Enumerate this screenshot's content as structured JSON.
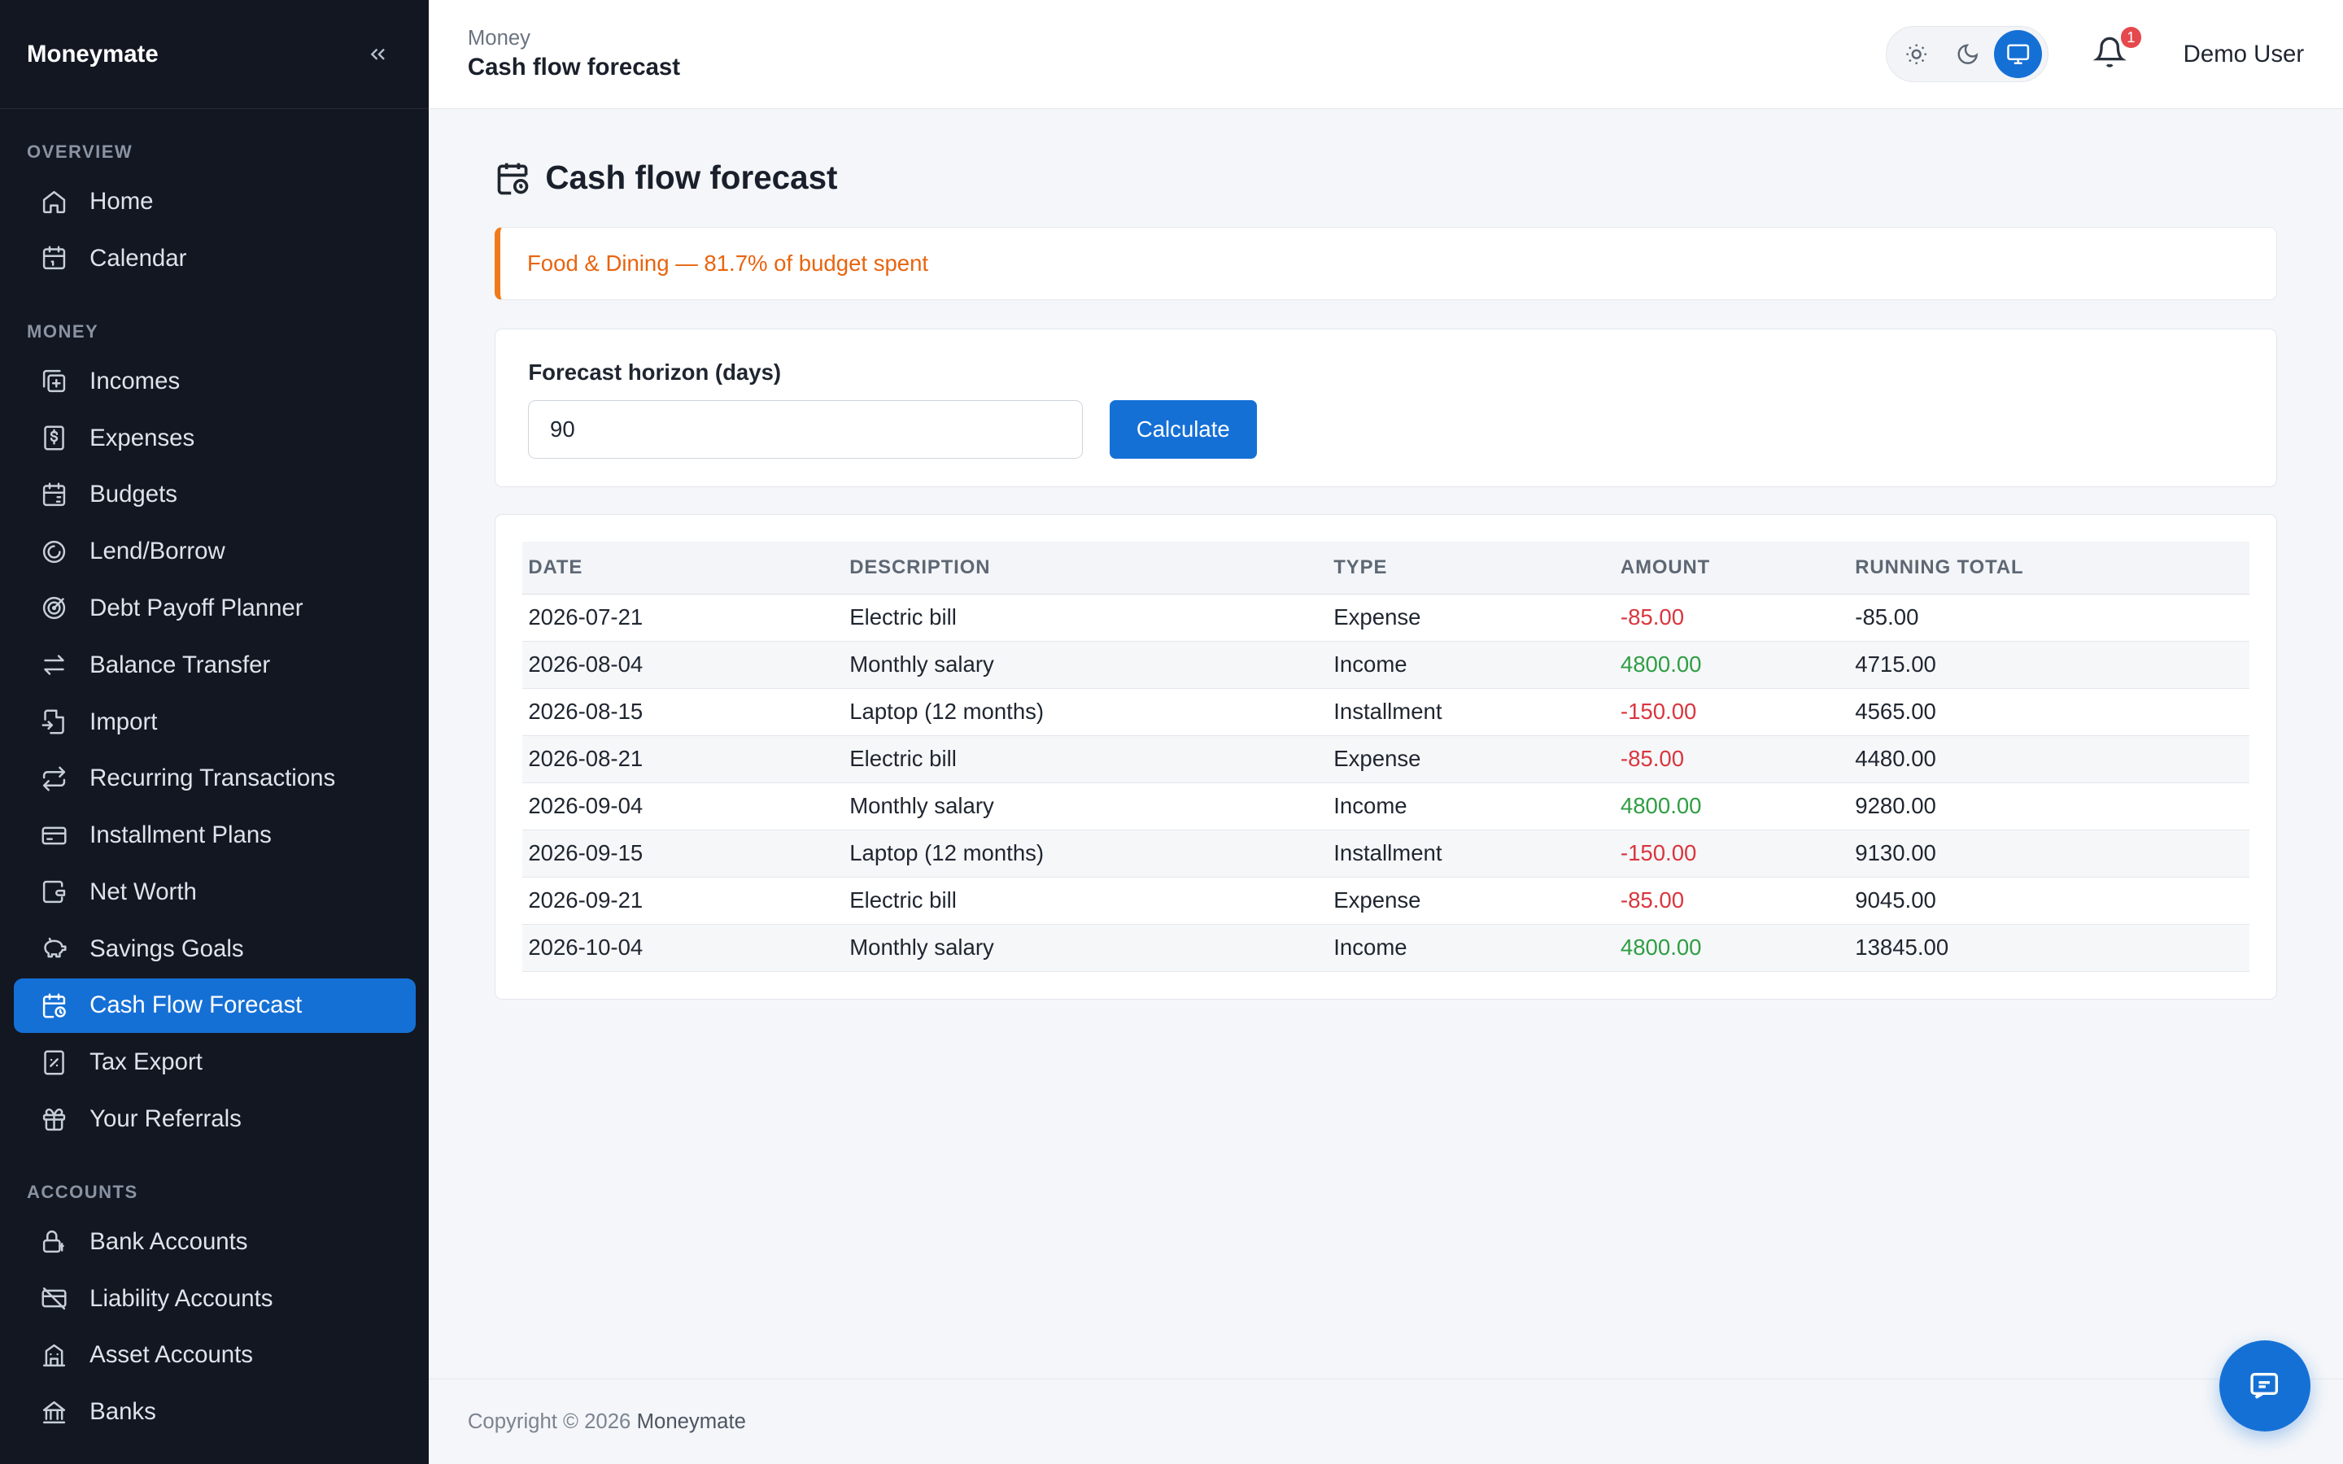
{
  "app": {
    "brand": "Moneymate",
    "collapse_icon": "chevrons-left-icon"
  },
  "sidebar": {
    "sections": [
      {
        "title": "OVERVIEW",
        "items": [
          {
            "label": "Home",
            "icon": "home-icon"
          },
          {
            "label": "Calendar",
            "icon": "calendar-icon"
          }
        ]
      },
      {
        "title": "MONEY",
        "items": [
          {
            "label": "Incomes",
            "icon": "income-icon"
          },
          {
            "label": "Expenses",
            "icon": "expense-icon"
          },
          {
            "label": "Budgets",
            "icon": "budget-icon"
          },
          {
            "label": "Lend/Borrow",
            "icon": "lend-borrow-icon"
          },
          {
            "label": "Debt Payoff Planner",
            "icon": "target-icon"
          },
          {
            "label": "Balance Transfer",
            "icon": "transfer-icon"
          },
          {
            "label": "Import",
            "icon": "import-icon"
          },
          {
            "label": "Recurring Transactions",
            "icon": "repeat-icon"
          },
          {
            "label": "Installment Plans",
            "icon": "credit-card-icon"
          },
          {
            "label": "Net Worth",
            "icon": "wallet-icon"
          },
          {
            "label": "Savings Goals",
            "icon": "piggy-bank-icon"
          },
          {
            "label": "Cash Flow Forecast",
            "icon": "calendar-clock-icon",
            "active": true
          },
          {
            "label": "Tax Export",
            "icon": "receipt-icon"
          },
          {
            "label": "Your Referrals",
            "icon": "gift-icon"
          }
        ]
      },
      {
        "title": "ACCOUNTS",
        "items": [
          {
            "label": "Bank Accounts",
            "icon": "bank-lock-icon"
          },
          {
            "label": "Liability Accounts",
            "icon": "card-off-icon"
          },
          {
            "label": "Asset Accounts",
            "icon": "building-icon"
          },
          {
            "label": "Banks",
            "icon": "bank-icon"
          }
        ]
      }
    ]
  },
  "header": {
    "breadcrumb_parent": "Money",
    "breadcrumb_current": "Cash flow forecast",
    "theme_buttons": [
      "sun-icon",
      "moon-icon",
      "monitor-icon"
    ],
    "active_theme": "monitor",
    "notification_count": "1",
    "user_name": "Demo User"
  },
  "page": {
    "title": "Cash flow forecast",
    "alert": "Food & Dining — 81.7% of budget spent",
    "form": {
      "label": "Forecast horizon (days)",
      "value": "90",
      "button": "Calculate"
    },
    "table": {
      "columns": [
        "DATE",
        "DESCRIPTION",
        "TYPE",
        "AMOUNT",
        "RUNNING TOTAL"
      ],
      "rows": [
        {
          "date": "2026-07-21",
          "description": "Electric bill",
          "type": "Expense",
          "amount": "-85.00",
          "total": "-85.00",
          "sign": "neg"
        },
        {
          "date": "2026-08-04",
          "description": "Monthly salary",
          "type": "Income",
          "amount": "4800.00",
          "total": "4715.00",
          "sign": "pos"
        },
        {
          "date": "2026-08-15",
          "description": "Laptop (12 months)",
          "type": "Installment",
          "amount": "-150.00",
          "total": "4565.00",
          "sign": "neg"
        },
        {
          "date": "2026-08-21",
          "description": "Electric bill",
          "type": "Expense",
          "amount": "-85.00",
          "total": "4480.00",
          "sign": "neg"
        },
        {
          "date": "2026-09-04",
          "description": "Monthly salary",
          "type": "Income",
          "amount": "4800.00",
          "total": "9280.00",
          "sign": "pos"
        },
        {
          "date": "2026-09-15",
          "description": "Laptop (12 months)",
          "type": "Installment",
          "amount": "-150.00",
          "total": "9130.00",
          "sign": "neg"
        },
        {
          "date": "2026-09-21",
          "description": "Electric bill",
          "type": "Expense",
          "amount": "-85.00",
          "total": "9045.00",
          "sign": "neg"
        },
        {
          "date": "2026-10-04",
          "description": "Monthly salary",
          "type": "Income",
          "amount": "4800.00",
          "total": "13845.00",
          "sign": "pos"
        }
      ]
    }
  },
  "footer": {
    "copyright": "Copyright © 2026",
    "brand": "Moneymate"
  },
  "chat": {
    "icon": "chat-icon"
  },
  "colors": {
    "accent": "#1570d6",
    "sidebar_bg": "#121722",
    "negative": "#d9363e",
    "positive": "#2f9e44",
    "alert": "#e8640f"
  }
}
